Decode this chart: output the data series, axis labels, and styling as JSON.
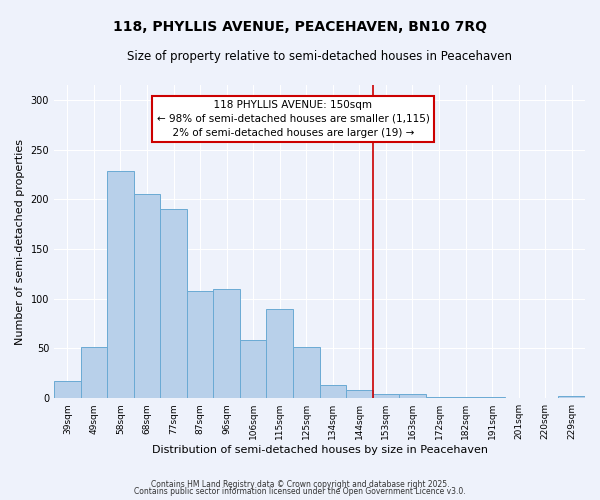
{
  "title": "118, PHYLLIS AVENUE, PEACEHAVEN, BN10 7RQ",
  "subtitle": "Size of property relative to semi-detached houses in Peacehaven",
  "xlabel": "Distribution of semi-detached houses by size in Peacehaven",
  "ylabel": "Number of semi-detached properties",
  "bar_labels": [
    "39sqm",
    "49sqm",
    "58sqm",
    "68sqm",
    "77sqm",
    "87sqm",
    "96sqm",
    "106sqm",
    "115sqm",
    "125sqm",
    "134sqm",
    "144sqm",
    "153sqm",
    "163sqm",
    "172sqm",
    "182sqm",
    "191sqm",
    "201sqm",
    "220sqm",
    "229sqm"
  ],
  "bar_values": [
    17,
    52,
    229,
    205,
    190,
    108,
    110,
    59,
    90,
    52,
    13,
    8,
    4,
    4,
    1,
    1,
    1,
    0,
    0,
    2
  ],
  "bar_color": "#b8d0ea",
  "bar_edge_color": "#6aaad4",
  "ylim": [
    0,
    315
  ],
  "yticks": [
    0,
    50,
    100,
    150,
    200,
    250,
    300
  ],
  "vline_x_index": 12,
  "vline_color": "#cc0000",
  "annotation_title": "118 PHYLLIS AVENUE: 150sqm",
  "annotation_line1": "← 98% of semi-detached houses are smaller (1,115)",
  "annotation_line2": "2% of semi-detached houses are larger (19) →",
  "annotation_box_color": "#ffffff",
  "annotation_box_edge": "#cc0000",
  "footer_line1": "Contains HM Land Registry data © Crown copyright and database right 2025.",
  "footer_line2": "Contains public sector information licensed under the Open Government Licence v3.0.",
  "background_color": "#eef2fb",
  "grid_color": "#ffffff",
  "title_fontsize": 10,
  "subtitle_fontsize": 8.5,
  "tick_label_fontsize": 6.5,
  "ylabel_fontsize": 8,
  "xlabel_fontsize": 8,
  "footer_fontsize": 5.5,
  "annotation_fontsize": 7.5
}
